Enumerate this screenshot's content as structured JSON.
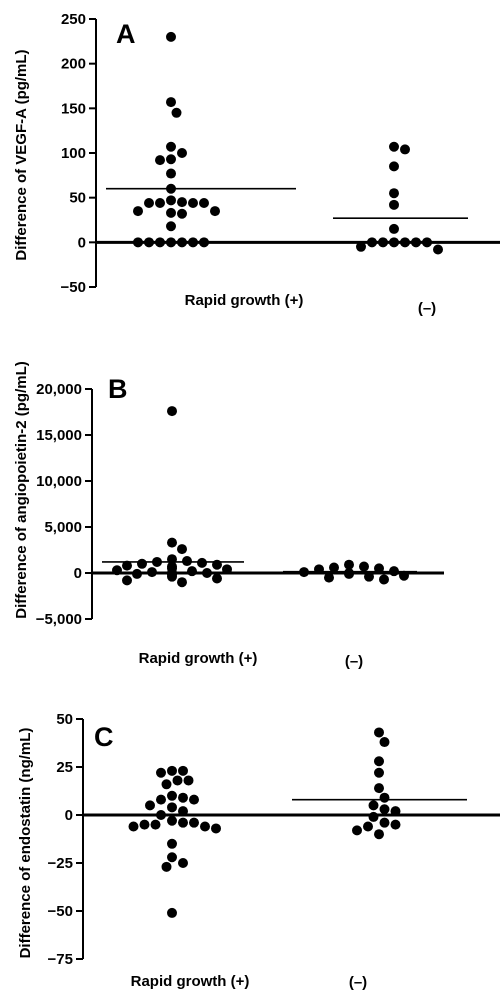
{
  "chart_data": [
    {
      "type": "scatter",
      "panel": "A",
      "ylabel": "Difference of VEGF-A (pg/mL)",
      "categories": [
        "Rapid growth (+)",
        "(–)"
      ],
      "ylim": [
        -50,
        250
      ],
      "yticks": [
        -50,
        0,
        50,
        100,
        150,
        200,
        250
      ],
      "ytick_labels": [
        "−50",
        "0",
        "50",
        "100",
        "150",
        "200",
        "250"
      ],
      "zero_line": true,
      "series": [
        {
          "category": "Rapid growth (+)",
          "mean": 60,
          "values": [
            230,
            157,
            145,
            107,
            100,
            93,
            92,
            77,
            60,
            47,
            45,
            44,
            44,
            44,
            44,
            35,
            35,
            33,
            32,
            18,
            0,
            0,
            0,
            0,
            0,
            0,
            0
          ]
        },
        {
          "category": "(–)",
          "mean": 27,
          "values": [
            107,
            104,
            85,
            55,
            42,
            15,
            0,
            0,
            0,
            0,
            0,
            0,
            -5,
            -8
          ]
        }
      ]
    },
    {
      "type": "scatter",
      "panel": "B",
      "ylabel": "Difference of angiopoietin-2 (pg/mL)",
      "categories": [
        "Rapid growth (+)",
        "(–)"
      ],
      "ylim": [
        -5000,
        20000
      ],
      "yticks": [
        -5000,
        0,
        5000,
        10000,
        15000,
        20000
      ],
      "ytick_labels": [
        "−5,000",
        "0",
        "5,000",
        "10,000",
        "15,000",
        "20,000"
      ],
      "zero_line": true,
      "series": [
        {
          "category": "Rapid growth (+)",
          "mean": 1200,
          "values": [
            17600,
            3300,
            2600,
            1500,
            1300,
            1200,
            1100,
            1000,
            900,
            800,
            700,
            500,
            400,
            300,
            200,
            100,
            0,
            0,
            -100,
            -200,
            -400,
            -600,
            -800,
            -1000
          ]
        },
        {
          "category": "(–)",
          "mean": 150,
          "values": [
            900,
            700,
            600,
            500,
            400,
            200,
            100,
            0,
            -100,
            -300,
            -400,
            -500,
            -700
          ]
        }
      ]
    },
    {
      "type": "scatter",
      "panel": "C",
      "ylabel": "Difference of endostatin (ng/mL)",
      "categories": [
        "Rapid growth (+)",
        "(–)"
      ],
      "ylim": [
        -75,
        50
      ],
      "yticks": [
        -75,
        -50,
        -25,
        0,
        25,
        50
      ],
      "ytick_labels": [
        "−75",
        "−50",
        "−25",
        "0",
        "25",
        "50"
      ],
      "zero_line": true,
      "series": [
        {
          "category": "Rapid growth (+)",
          "mean": 0,
          "values": [
            23,
            23,
            22,
            18,
            18,
            16,
            10,
            9,
            8,
            8,
            5,
            4,
            2,
            0,
            -3,
            -4,
            -4,
            -5,
            -5,
            -6,
            -6,
            -7,
            -15,
            -22,
            -25,
            -27,
            -51
          ]
        },
        {
          "category": "(–)",
          "mean": 8,
          "values": [
            43,
            38,
            28,
            22,
            14,
            9,
            5,
            3,
            2,
            -1,
            -4,
            -5,
            -6,
            -8,
            -10
          ]
        }
      ]
    }
  ]
}
